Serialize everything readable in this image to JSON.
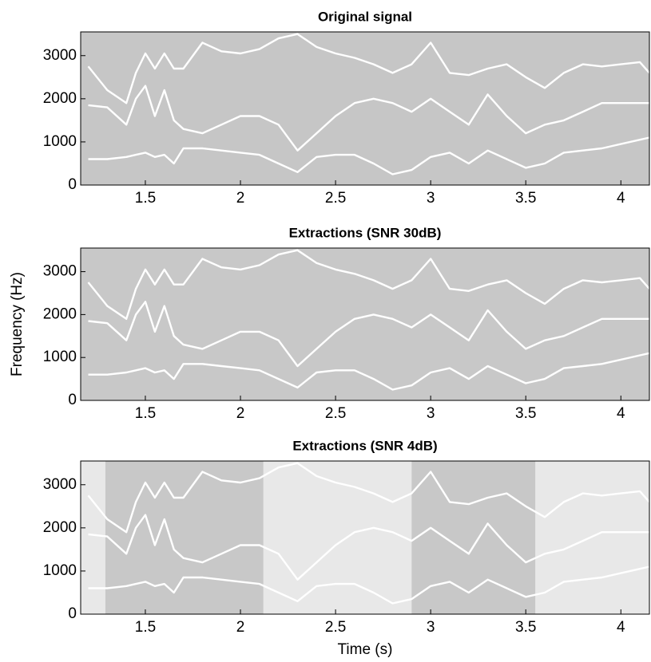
{
  "chart_data": [
    {
      "type": "line",
      "title": "Original signal",
      "background": "#c6c6c6",
      "xlim": [
        1.16,
        4.15
      ],
      "xticks": [
        1.5,
        2,
        2.5,
        3,
        3.5,
        4
      ],
      "ylim": [
        0,
        3550
      ],
      "yticks": [
        0,
        1000,
        2000,
        3000
      ],
      "x": [
        1.2,
        1.3,
        1.4,
        1.45,
        1.5,
        1.55,
        1.6,
        1.65,
        1.7,
        1.8,
        1.9,
        2.0,
        2.1,
        2.2,
        2.3,
        2.4,
        2.5,
        2.6,
        2.7,
        2.8,
        2.9,
        3.0,
        3.1,
        3.2,
        3.3,
        3.4,
        3.5,
        3.6,
        3.7,
        3.8,
        3.9,
        4.0,
        4.1,
        4.15
      ],
      "series": [
        {
          "color": "#ffffff",
          "values": [
            2750,
            2200,
            1900,
            2600,
            3050,
            2700,
            3050,
            2700,
            2700,
            3300,
            3100,
            3050,
            3150,
            3400,
            3500,
            3200,
            3050,
            2950,
            2800,
            2600,
            2800,
            3300,
            2600,
            2550,
            2700,
            2800,
            2500,
            2250,
            2600,
            2800,
            2750,
            2800,
            2850,
            2600
          ]
        },
        {
          "color": "#ffffff",
          "values": [
            1850,
            1800,
            1400,
            2000,
            2300,
            1600,
            2200,
            1500,
            1300,
            1200,
            1400,
            1600,
            1600,
            1400,
            800,
            1200,
            1600,
            1900,
            2000,
            1900,
            1700,
            2000,
            1700,
            1400,
            2100,
            1600,
            1200,
            1400,
            1500,
            1700,
            1900,
            1900,
            1900,
            1900
          ]
        },
        {
          "color": "#ffffff",
          "values": [
            600,
            600,
            650,
            700,
            750,
            650,
            700,
            500,
            850,
            850,
            800,
            750,
            700,
            500,
            300,
            650,
            700,
            700,
            500,
            250,
            350,
            650,
            750,
            500,
            800,
            600,
            400,
            500,
            750,
            800,
            850,
            950,
            1050,
            1100
          ]
        }
      ]
    },
    {
      "type": "line",
      "title": "Extractions (SNR 30dB)",
      "ylabel": "Frequency (Hz)",
      "background": "#c8c8c8",
      "xlim": [
        1.16,
        4.15
      ],
      "xticks": [
        1.5,
        2,
        2.5,
        3,
        3.5,
        4
      ],
      "ylim": [
        0,
        3550
      ],
      "yticks": [
        0,
        1000,
        2000,
        3000
      ],
      "x": [
        1.2,
        1.3,
        1.4,
        1.45,
        1.5,
        1.55,
        1.6,
        1.65,
        1.7,
        1.8,
        1.9,
        2.0,
        2.1,
        2.2,
        2.3,
        2.4,
        2.5,
        2.6,
        2.7,
        2.8,
        2.9,
        3.0,
        3.1,
        3.2,
        3.3,
        3.4,
        3.5,
        3.6,
        3.7,
        3.8,
        3.9,
        4.0,
        4.1,
        4.15
      ],
      "series": [
        {
          "color": "#ffffff",
          "values": [
            2750,
            2200,
            1900,
            2600,
            3050,
            2700,
            3050,
            2700,
            2700,
            3300,
            3100,
            3050,
            3150,
            3400,
            3500,
            3200,
            3050,
            2950,
            2800,
            2600,
            2800,
            3300,
            2600,
            2550,
            2700,
            2800,
            2500,
            2250,
            2600,
            2800,
            2750,
            2800,
            2850,
            2600
          ]
        },
        {
          "color": "#ffffff",
          "values": [
            1850,
            1800,
            1400,
            2000,
            2300,
            1600,
            2200,
            1500,
            1300,
            1200,
            1400,
            1600,
            1600,
            1400,
            800,
            1200,
            1600,
            1900,
            2000,
            1900,
            1700,
            2000,
            1700,
            1400,
            2100,
            1600,
            1200,
            1400,
            1500,
            1700,
            1900,
            1900,
            1900,
            1900
          ]
        },
        {
          "color": "#ffffff",
          "values": [
            600,
            600,
            650,
            700,
            750,
            650,
            700,
            500,
            850,
            850,
            800,
            750,
            700,
            500,
            300,
            650,
            700,
            700,
            500,
            250,
            350,
            650,
            750,
            500,
            800,
            600,
            400,
            500,
            750,
            800,
            850,
            950,
            1050,
            1100
          ]
        }
      ]
    },
    {
      "type": "line",
      "title": "Extractions (SNR 4dB)",
      "xlabel": "Time (s)",
      "background": "#e8e8e8",
      "regions": [
        {
          "x": [
            1.29,
            2.12
          ],
          "color": "#c8c8c8"
        },
        {
          "x": [
            2.9,
            3.55
          ],
          "color": "#c8c8c8"
        }
      ],
      "xlim": [
        1.16,
        4.15
      ],
      "xticks": [
        1.5,
        2,
        2.5,
        3,
        3.5,
        4
      ],
      "ylim": [
        0,
        3550
      ],
      "yticks": [
        0,
        1000,
        2000,
        3000
      ],
      "x": [
        1.2,
        1.3,
        1.4,
        1.45,
        1.5,
        1.55,
        1.6,
        1.65,
        1.7,
        1.8,
        1.9,
        2.0,
        2.1,
        2.2,
        2.3,
        2.4,
        2.5,
        2.6,
        2.7,
        2.8,
        2.9,
        3.0,
        3.1,
        3.2,
        3.3,
        3.4,
        3.5,
        3.6,
        3.7,
        3.8,
        3.9,
        4.0,
        4.1,
        4.15
      ],
      "series": [
        {
          "color": "#ffffff",
          "values": [
            2750,
            2200,
            1900,
            2600,
            3050,
            2700,
            3050,
            2700,
            2700,
            3300,
            3100,
            3050,
            3150,
            3400,
            3500,
            3200,
            3050,
            2950,
            2800,
            2600,
            2800,
            3300,
            2600,
            2550,
            2700,
            2800,
            2500,
            2250,
            2600,
            2800,
            2750,
            2800,
            2850,
            2600
          ]
        },
        {
          "color": "#ffffff",
          "values": [
            1850,
            1800,
            1400,
            2000,
            2300,
            1600,
            2200,
            1500,
            1300,
            1200,
            1400,
            1600,
            1600,
            1400,
            800,
            1200,
            1600,
            1900,
            2000,
            1900,
            1700,
            2000,
            1700,
            1400,
            2100,
            1600,
            1200,
            1400,
            1500,
            1700,
            1900,
            1900,
            1900,
            1900
          ]
        },
        {
          "color": "#ffffff",
          "values": [
            600,
            600,
            650,
            700,
            750,
            650,
            700,
            500,
            850,
            850,
            800,
            750,
            700,
            500,
            300,
            650,
            700,
            700,
            500,
            250,
            350,
            650,
            750,
            500,
            800,
            600,
            400,
            500,
            750,
            800,
            850,
            950,
            1050,
            1100
          ]
        }
      ]
    }
  ]
}
